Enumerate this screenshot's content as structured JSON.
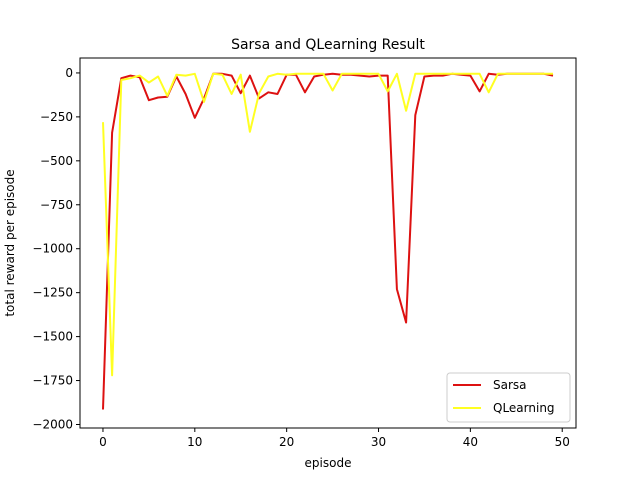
{
  "chart_data": {
    "type": "line",
    "title": "Sarsa and QLearning Result",
    "xlabel": "episode",
    "ylabel": "total reward per episode",
    "xlim": [
      -2.5,
      51.5
    ],
    "ylim": [
      -2020,
      85
    ],
    "xticks": [
      0,
      10,
      20,
      30,
      40,
      50
    ],
    "yticks": [
      0,
      -250,
      -500,
      -750,
      -1000,
      -1250,
      -1500,
      -1750,
      -2000
    ],
    "grid": false,
    "legend_position": "lower right",
    "x": [
      0,
      1,
      2,
      3,
      4,
      5,
      6,
      7,
      8,
      9,
      10,
      11,
      12,
      13,
      14,
      15,
      16,
      17,
      18,
      19,
      20,
      21,
      22,
      23,
      24,
      25,
      26,
      27,
      28,
      29,
      30,
      31,
      32,
      33,
      34,
      35,
      36,
      37,
      38,
      39,
      40,
      41,
      42,
      43,
      44,
      45,
      46,
      47,
      48,
      49
    ],
    "series": [
      {
        "name": "Sarsa",
        "color": "#dd1111",
        "values": [
          -1915,
          -340,
          -30,
          -15,
          -25,
          -155,
          -140,
          -135,
          -20,
          -120,
          -255,
          -145,
          -5,
          -5,
          -15,
          -115,
          -15,
          -145,
          -110,
          -120,
          -10,
          -10,
          -110,
          -20,
          -10,
          -5,
          -10,
          -10,
          -15,
          -20,
          -15,
          -15,
          -1230,
          -1420,
          -240,
          -20,
          -15,
          -15,
          -5,
          -10,
          -15,
          -105,
          -5,
          -10,
          -5,
          -5,
          -5,
          -5,
          -5,
          -15
        ]
      },
      {
        "name": "QLearning",
        "color": "#ffff22",
        "values": [
          -280,
          -1720,
          -40,
          -30,
          -15,
          -55,
          -20,
          -130,
          -10,
          -15,
          -5,
          -165,
          -5,
          -10,
          -120,
          -10,
          -335,
          -115,
          -20,
          -5,
          -10,
          -5,
          -5,
          -5,
          -5,
          -100,
          -5,
          -5,
          -5,
          -5,
          -5,
          -105,
          -5,
          -215,
          -5,
          -5,
          -5,
          -5,
          -5,
          -5,
          -5,
          -5,
          -110,
          -5,
          -5,
          -5,
          -5,
          -5,
          -5,
          -5
        ]
      }
    ]
  }
}
